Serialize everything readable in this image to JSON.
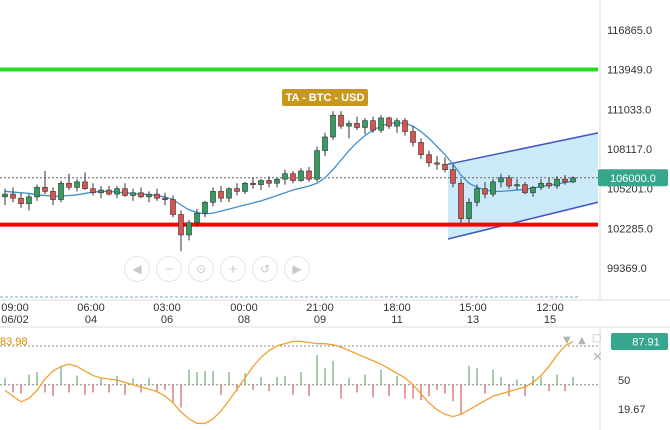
{
  "chart_data": {
    "type": "candlestick",
    "title": "TA - BTC - USD",
    "price_axis": {
      "ticks": [
        "116865.0",
        "113949.0",
        "111033.0",
        "108117.0",
        "105201.0",
        "102285.0",
        "99369.0"
      ],
      "ylim": [
        97500,
        119000
      ]
    },
    "time_axis": {
      "labels": [
        {
          "time": "09:00",
          "date": "06/02"
        },
        {
          "time": "06:00",
          "date": "04"
        },
        {
          "time": "03:00",
          "date": "06"
        },
        {
          "time": "00:00",
          "date": "08"
        },
        {
          "time": "21:00",
          "date": "09"
        },
        {
          "time": "18:00",
          "date": "11"
        },
        {
          "time": "15:00",
          "date": "13"
        },
        {
          "time": "12:00",
          "date": "15"
        }
      ]
    },
    "current_price": {
      "label": "106000.0",
      "value": 106000
    },
    "support_line": {
      "value": 102560,
      "color": "#ff0000"
    },
    "resistance_line": {
      "value": 113960,
      "color": "#22dd22"
    },
    "channel": {
      "upper": [
        107000,
        109300
      ],
      "lower": [
        101500,
        104200
      ],
      "fill": "#bfe3f7",
      "stroke": "#4455bb"
    },
    "candles": [
      [
        104600,
        105200,
        104000,
        104800
      ],
      [
        104800,
        105300,
        104200,
        104500
      ],
      [
        104500,
        104900,
        103800,
        104100
      ],
      [
        104100,
        104800,
        103600,
        104600
      ],
      [
        104600,
        105500,
        104300,
        105300
      ],
      [
        105300,
        106500,
        104800,
        105000
      ],
      [
        105000,
        105300,
        104000,
        104400
      ],
      [
        104400,
        105800,
        104200,
        105600
      ],
      [
        105600,
        106300,
        105100,
        105300
      ],
      [
        105300,
        105900,
        105000,
        105700
      ],
      [
        105700,
        106400,
        105100,
        105200
      ],
      [
        105200,
        105600,
        104700,
        104900
      ],
      [
        104900,
        105400,
        104500,
        105100
      ],
      [
        105100,
        105400,
        104700,
        104800
      ],
      [
        104800,
        105400,
        104500,
        105200
      ],
      [
        105200,
        105600,
        104600,
        104700
      ],
      [
        104700,
        105200,
        104300,
        104900
      ],
      [
        104900,
        105300,
        104500,
        104600
      ],
      [
        104600,
        105000,
        104200,
        104800
      ],
      [
        104800,
        105200,
        104300,
        104500
      ],
      [
        104500,
        104900,
        104000,
        104400
      ],
      [
        104400,
        104700,
        103100,
        103300
      ],
      [
        103300,
        103600,
        100600,
        101800
      ],
      [
        101800,
        102900,
        101400,
        102700
      ],
      [
        102700,
        103700,
        102400,
        103400
      ],
      [
        103400,
        104300,
        103100,
        104200
      ],
      [
        104200,
        105300,
        103900,
        105000
      ],
      [
        105000,
        105400,
        104200,
        104500
      ],
      [
        104500,
        105300,
        104200,
        105200
      ],
      [
        105200,
        105600,
        104700,
        105000
      ],
      [
        105000,
        105700,
        104800,
        105600
      ],
      [
        105600,
        106000,
        105200,
        105500
      ],
      [
        105500,
        105900,
        105100,
        105800
      ],
      [
        105800,
        106100,
        105300,
        105600
      ],
      [
        105600,
        106000,
        105300,
        105900
      ],
      [
        105900,
        106600,
        105500,
        106300
      ],
      [
        106300,
        106500,
        105600,
        105800
      ],
      [
        105800,
        106700,
        105700,
        106500
      ],
      [
        106500,
        106800,
        105700,
        105900
      ],
      [
        105900,
        108300,
        105700,
        108000
      ],
      [
        108000,
        109300,
        107600,
        109000
      ],
      [
        109000,
        110900,
        108800,
        110600
      ],
      [
        110600,
        110900,
        109600,
        109800
      ],
      [
        109800,
        110200,
        108900,
        110000
      ],
      [
        110000,
        110500,
        109500,
        109700
      ],
      [
        109700,
        110400,
        109200,
        110200
      ],
      [
        110200,
        110500,
        109300,
        109500
      ],
      [
        109500,
        110600,
        109300,
        110400
      ],
      [
        110400,
        110500,
        109600,
        109800
      ],
      [
        109800,
        110400,
        109300,
        110200
      ],
      [
        110200,
        110400,
        109100,
        109400
      ],
      [
        109400,
        109800,
        108300,
        108600
      ],
      [
        108600,
        108900,
        107400,
        107700
      ],
      [
        107700,
        108000,
        106800,
        107100
      ],
      [
        107100,
        107600,
        106600,
        107000
      ],
      [
        107000,
        107500,
        106400,
        106600
      ],
      [
        106600,
        107000,
        105300,
        105600
      ],
      [
        105600,
        105900,
        102700,
        103000
      ],
      [
        103000,
        104500,
        102700,
        104200
      ],
      [
        104200,
        105500,
        103900,
        105200
      ],
      [
        105200,
        105700,
        104500,
        104800
      ],
      [
        104800,
        105900,
        104600,
        105700
      ],
      [
        105700,
        106300,
        105300,
        106000
      ],
      [
        106000,
        106200,
        105200,
        105400
      ],
      [
        105400,
        105900,
        105100,
        105500
      ],
      [
        105500,
        105700,
        104800,
        104900
      ],
      [
        104900,
        105400,
        104600,
        105300
      ],
      [
        105300,
        105900,
        105100,
        105600
      ],
      [
        105600,
        106000,
        105200,
        105400
      ],
      [
        105400,
        106100,
        105200,
        105900
      ],
      [
        105900,
        106200,
        105500,
        105700
      ],
      [
        105700,
        106100,
        105600,
        106000
      ]
    ],
    "moving_average": [
      105000,
      104950,
      104900,
      104850,
      104750,
      104700,
      104650,
      104650,
      104700,
      104750,
      104850,
      104950,
      105000,
      105000,
      104950,
      104900,
      104850,
      104800,
      104750,
      104700,
      104600,
      104400,
      104000,
      103650,
      103450,
      103350,
      103400,
      103550,
      103700,
      103850,
      104000,
      104150,
      104300,
      104500,
      104700,
      104900,
      105100,
      105250,
      105400,
      105600,
      106000,
      106600,
      107300,
      108000,
      108600,
      109100,
      109500,
      109800,
      110000,
      110050,
      110000,
      109800,
      109400,
      108900,
      108300,
      107700,
      107000,
      106200,
      105600,
      105300,
      105100,
      105000,
      105000,
      105050,
      105100,
      105150,
      105250,
      105350,
      105450,
      105550,
      105650,
      105750
    ],
    "oscillator": {
      "axis_labels": [
        "83.98",
        "50",
        "19.67"
      ],
      "current_label": "87.91",
      "current_value": 87.91,
      "neutral": 50,
      "ylim": [
        12,
        98
      ],
      "values": [
        45,
        40,
        35,
        38,
        45,
        55,
        62,
        66,
        68,
        66,
        62,
        58,
        56,
        55,
        54,
        52,
        50,
        48,
        46,
        44,
        40,
        34,
        26,
        20,
        16,
        16,
        20,
        27,
        36,
        46,
        56,
        66,
        74,
        80,
        84,
        86,
        88,
        88,
        87,
        86,
        86,
        85,
        83,
        80,
        77,
        74,
        71,
        68,
        64,
        60,
        56,
        50,
        42,
        34,
        28,
        24,
        22,
        24,
        28,
        32,
        36,
        40,
        42,
        44,
        46,
        48,
        52,
        58,
        66,
        76,
        84,
        88
      ]
    }
  }
}
